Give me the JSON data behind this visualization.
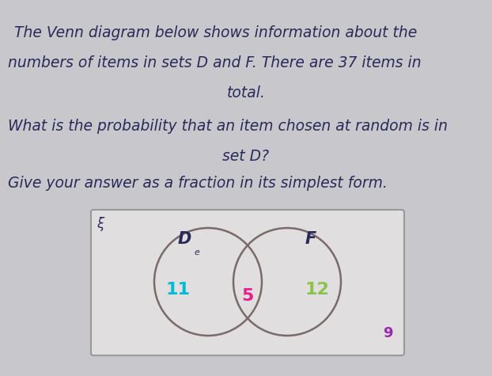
{
  "line1": "The Venn diagram below shows information about the",
  "line2": "numbers of items in sets D and F. There are 37 items in",
  "line3": "total.",
  "line4": "What is the probability that an item chosen at random is in",
  "line5": "set D?",
  "line6": "Give your answer as a fraction in its simplest form.",
  "set_D_label": "D",
  "set_F_label": "F",
  "xi_label": "ξ",
  "d_only_value": "11",
  "d_only_color": "#00bcd4",
  "intersection_value": "5",
  "intersection_color": "#e91e8c",
  "f_only_value": "12",
  "f_only_color": "#8bc34a",
  "outside_value": "9",
  "outside_color": "#9c27b0",
  "box_bg": "#e0dede",
  "circle_color": "#7a6a6a",
  "text_color": "#2a2a5a",
  "fig_bg": "#c8c8cc"
}
